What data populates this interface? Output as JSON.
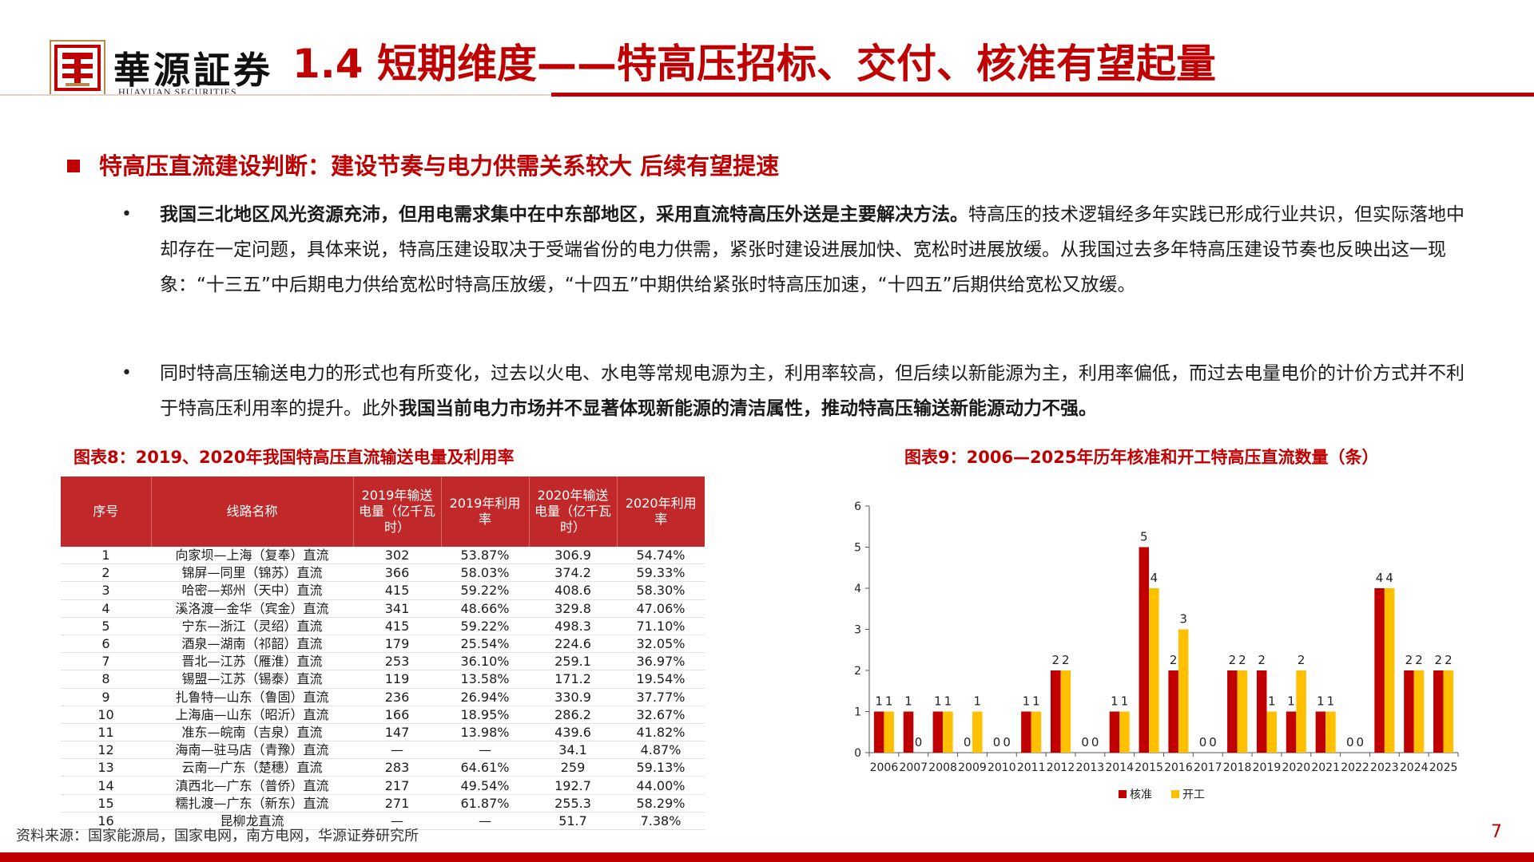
{
  "header": {
    "brand_name": "華源証券",
    "brand_sub": "HUAYUAN SECURITIES",
    "page_title": "1.4 短期维度——特高压招标、交付、核准有望起量"
  },
  "section": {
    "heading": "特高压直流建设判断：建设节奏与电力供需关系较大 后续有望提速"
  },
  "bullets": [
    {
      "marker": "•",
      "bold": "我国三北地区风光资源充沛，但用电需求集中在中东部地区，采用直流特高压外送是主要解决方法。",
      "text": "特高压的技术逻辑经多年实践已形成行业共识，但实际落地中却存在一定问题，具体来说，特高压建设取决于受端省份的电力供需，紧张时建设进展加快、宽松时进展放缓。从我国过去多年特高压建设节奏也反映出这一现象：“十三五”中后期电力供给宽松时特高压放缓，“十四五”中期供给紧张时特高压加速，“十四五”后期供给宽松又放缓。"
    },
    {
      "marker": "•",
      "text": "同时特高压输送电力的形式也有所变化，过去以火电、水电等常规电源为主，利用率较高，但后续以新能源为主，利用率偏低，而过去电量电价的计价方式并不利于特高压利用率的提升。此外",
      "bold": "我国当前电力市场并不显著体现新能源的清洁属性，推动特高压输送新能源动力不强。"
    }
  ],
  "table_figure": {
    "title": "图表8：2019、2020年我国特高压直流输送电量及利用率",
    "headers": [
      "序号",
      "线路名称",
      "2019年输送电量（亿千瓦时）",
      "2019年利用率",
      "2020年输送电量（亿千瓦时）",
      "2020年利用率"
    ],
    "rows": [
      [
        "1",
        "向家坝—上海（复奉）直流",
        "302",
        "53.87%",
        "306.9",
        "54.74%"
      ],
      [
        "2",
        "锦屏—同里（锦苏）直流",
        "366",
        "58.03%",
        "374.2",
        "59.33%"
      ],
      [
        "3",
        "哈密—郑州（天中）直流",
        "415",
        "59.22%",
        "408.6",
        "58.30%"
      ],
      [
        "4",
        "溪洛渡—金华（宾金）直流",
        "341",
        "48.66%",
        "329.8",
        "47.06%"
      ],
      [
        "5",
        "宁东—浙江（灵绍）直流",
        "415",
        "59.22%",
        "498.3",
        "71.10%"
      ],
      [
        "6",
        "酒泉—湖南（祁韶）直流",
        "179",
        "25.54%",
        "224.6",
        "32.05%"
      ],
      [
        "7",
        "晋北—江苏（雁淮）直流",
        "253",
        "36.10%",
        "259.1",
        "36.97%"
      ],
      [
        "8",
        "锡盟—江苏（锡泰）直流",
        "119",
        "13.58%",
        "171.2",
        "19.54%"
      ],
      [
        "9",
        "扎鲁特—山东（鲁固）直流",
        "236",
        "26.94%",
        "330.9",
        "37.77%"
      ],
      [
        "10",
        "上海庙—山东（昭沂）直流",
        "166",
        "18.95%",
        "286.2",
        "32.67%"
      ],
      [
        "11",
        "准东—皖南（吉泉）直流",
        "147",
        "13.98%",
        "439.6",
        "41.82%"
      ],
      [
        "12",
        "海南—驻马店（青豫）直流",
        "—",
        "—",
        "34.1",
        "4.87%"
      ],
      [
        "13",
        "云南—广东（楚穗）直流",
        "283",
        "64.61%",
        "259",
        "59.13%"
      ],
      [
        "14",
        "滇西北—广东（普侨）直流",
        "217",
        "49.54%",
        "192.7",
        "44.00%"
      ],
      [
        "15",
        "糯扎渡—广东（新东）直流",
        "271",
        "61.87%",
        "255.3",
        "58.29%"
      ],
      [
        "16",
        "昆柳龙直流",
        "—",
        "—",
        "51.7",
        "7.38%"
      ]
    ]
  },
  "chart_figure": {
    "title": "图表9：2006—2025年历年核准和开工特高压直流数量（条）"
  },
  "chart_data": {
    "type": "bar",
    "title": "图表9：2006—2025年历年核准和开工特高压直流数量（条）",
    "categories": [
      "2006",
      "2007",
      "2008",
      "2009",
      "2010",
      "2011",
      "2012",
      "2013",
      "2014",
      "2015",
      "2016",
      "2017",
      "2018",
      "2019",
      "2020",
      "2021",
      "2022",
      "2023",
      "2024",
      "2025"
    ],
    "series": [
      {
        "name": "核准",
        "color": "#c00000",
        "values": [
          1,
          1,
          1,
          0,
          0,
          1,
          2,
          0,
          1,
          5,
          2,
          0,
          2,
          2,
          1,
          1,
          0,
          4,
          2,
          2
        ]
      },
      {
        "name": "开工",
        "color": "#ffc000",
        "values": [
          1,
          0,
          1,
          1,
          0,
          1,
          2,
          0,
          1,
          4,
          3,
          0,
          2,
          1,
          2,
          1,
          0,
          4,
          2,
          2
        ]
      }
    ],
    "ylim": [
      0,
      6
    ],
    "yticks": [
      0,
      1,
      2,
      3,
      4,
      5,
      6
    ],
    "grid": false,
    "legend": "bottom"
  },
  "footer": {
    "source": "资料来源：国家能源局，国家电网，南方电网，华源证券研究所",
    "page_number": "7"
  }
}
